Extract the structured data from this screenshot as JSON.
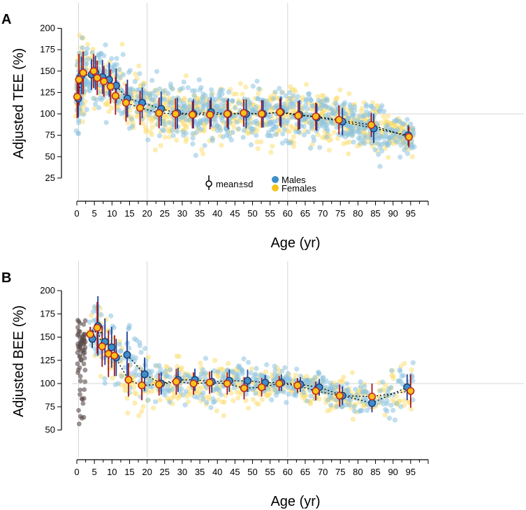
{
  "figure": {
    "colors": {
      "male_fill": "#3e8ec9",
      "male_edge": "#1f3e7a",
      "female_fill": "#f7c21a",
      "female_edge": "#c2241f",
      "male_bar": "#1f3e9a",
      "female_bar": "#a8141c",
      "male_scatter": "#8cc3e0",
      "female_scatter": "#fbdf73",
      "neonate_scatter": "#5a4a4a",
      "trend_line": "#000000"
    }
  },
  "chart_data": [
    {
      "panel": "A",
      "type": "scatter",
      "xlabel": "Age (yr)",
      "ylabel": "Adjusted TEE (%)",
      "xlim": [
        0,
        100
      ],
      "ylim": [
        25,
        200
      ],
      "xticks": [
        "0",
        "5",
        "10",
        "15",
        "20",
        "25",
        "30",
        "35",
        "40",
        "45",
        "50",
        "55",
        "60",
        "65",
        "70",
        "75",
        "80",
        "85",
        "90",
        "95"
      ],
      "yticks": [
        "25",
        "50",
        "75",
        "100",
        "125",
        "150",
        "175",
        "200"
      ],
      "vlines": [
        0.5,
        20,
        60
      ],
      "legend": {
        "title": "mean±sd",
        "entries": [
          "Males",
          "Females"
        ],
        "placement": "bottom-center"
      },
      "series": [
        {
          "name": "Males",
          "points": [
            {
              "x": 0.4,
              "mean": 118,
              "sd": 22
            },
            {
              "x": 1.3,
              "mean": 145,
              "sd": 22
            },
            {
              "x": 4.2,
              "mean": 146,
              "sd": 18
            },
            {
              "x": 5.3,
              "mean": 148,
              "sd": 20
            },
            {
              "x": 7.3,
              "mean": 143,
              "sd": 20
            },
            {
              "x": 9.2,
              "mean": 140,
              "sd": 20
            },
            {
              "x": 11.2,
              "mean": 133,
              "sd": 20
            },
            {
              "x": 14.4,
              "mean": 118,
              "sd": 22
            },
            {
              "x": 18.6,
              "mean": 113,
              "sd": 18
            },
            {
              "x": 24.0,
              "mean": 106,
              "sd": 20
            },
            {
              "x": 28.6,
              "mean": 101,
              "sd": 18
            },
            {
              "x": 33.2,
              "mean": 100,
              "sd": 17
            },
            {
              "x": 38.2,
              "mean": 102,
              "sd": 17
            },
            {
              "x": 43.1,
              "mean": 100,
              "sd": 18
            },
            {
              "x": 48.2,
              "mean": 100,
              "sd": 17
            },
            {
              "x": 53.0,
              "mean": 100,
              "sd": 16
            },
            {
              "x": 58.1,
              "mean": 102,
              "sd": 18
            },
            {
              "x": 63.4,
              "mean": 99,
              "sd": 17
            },
            {
              "x": 68.3,
              "mean": 96,
              "sd": 16
            },
            {
              "x": 75.6,
              "mean": 91,
              "sd": 16
            },
            {
              "x": 84.5,
              "mean": 83,
              "sd": 17
            },
            {
              "x": 94.3,
              "mean": 75,
              "sd": 12
            }
          ]
        },
        {
          "name": "Females",
          "points": [
            {
              "x": 0.1,
              "mean": 120,
              "sd": 25
            },
            {
              "x": 0.6,
              "mean": 140,
              "sd": 30
            },
            {
              "x": 1.8,
              "mean": 148,
              "sd": 25
            },
            {
              "x": 4.8,
              "mean": 150,
              "sd": 20
            },
            {
              "x": 5.8,
              "mean": 142,
              "sd": 20
            },
            {
              "x": 7.7,
              "mean": 138,
              "sd": 18
            },
            {
              "x": 9.6,
              "mean": 132,
              "sd": 20
            },
            {
              "x": 11.0,
              "mean": 121,
              "sd": 22
            },
            {
              "x": 14.0,
              "mean": 113,
              "sd": 22
            },
            {
              "x": 18.0,
              "mean": 107,
              "sd": 20
            },
            {
              "x": 23.4,
              "mean": 101,
              "sd": 18
            },
            {
              "x": 28.1,
              "mean": 100,
              "sd": 18
            },
            {
              "x": 32.9,
              "mean": 99,
              "sd": 16
            },
            {
              "x": 37.9,
              "mean": 99,
              "sd": 17
            },
            {
              "x": 42.8,
              "mean": 100,
              "sd": 16
            },
            {
              "x": 47.5,
              "mean": 101,
              "sd": 16
            },
            {
              "x": 52.6,
              "mean": 100,
              "sd": 16
            },
            {
              "x": 57.8,
              "mean": 102,
              "sd": 16
            },
            {
              "x": 63.0,
              "mean": 98,
              "sd": 17
            },
            {
              "x": 68.0,
              "mean": 97,
              "sd": 16
            },
            {
              "x": 74.6,
              "mean": 93,
              "sd": 17
            },
            {
              "x": 83.8,
              "mean": 87,
              "sd": 14
            },
            {
              "x": 94.5,
              "mean": 73,
              "sd": 12
            }
          ]
        }
      ]
    },
    {
      "panel": "B",
      "type": "scatter",
      "xlabel": "Age (yr)",
      "ylabel": "Adjusted BEE (%)",
      "xlim": [
        0,
        100
      ],
      "ylim": [
        40,
        200
      ],
      "xticks": [
        "0",
        "5",
        "10",
        "15",
        "20",
        "25",
        "30",
        "35",
        "40",
        "45",
        "50",
        "55",
        "60",
        "65",
        "70",
        "75",
        "80",
        "85",
        "90",
        "95"
      ],
      "yticks": [
        "50",
        "75",
        "100",
        "125",
        "150",
        "175",
        "200"
      ],
      "vlines": [
        0.5,
        20,
        60
      ],
      "hline": 100,
      "series": [
        {
          "name": "Males",
          "points": [
            {
              "x": 4.4,
              "mean": 148,
              "sd": 10
            },
            {
              "x": 6.0,
              "mean": 162,
              "sd": 32
            },
            {
              "x": 8.0,
              "mean": 145,
              "sd": 25
            },
            {
              "x": 9.9,
              "mean": 139,
              "sd": 22
            },
            {
              "x": 11.2,
              "mean": 128,
              "sd": 20
            },
            {
              "x": 14.3,
              "mean": 131,
              "sd": 25
            },
            {
              "x": 19.3,
              "mean": 110,
              "sd": 18
            },
            {
              "x": 24.0,
              "mean": 100,
              "sd": 12
            },
            {
              "x": 28.8,
              "mean": 104,
              "sd": 13
            },
            {
              "x": 33.6,
              "mean": 104,
              "sd": 12
            },
            {
              "x": 38.4,
              "mean": 102,
              "sd": 12
            },
            {
              "x": 43.4,
              "mean": 103,
              "sd": 12
            },
            {
              "x": 48.6,
              "mean": 103,
              "sd": 12
            },
            {
              "x": 53.6,
              "mean": 101,
              "sd": 8
            },
            {
              "x": 58.2,
              "mean": 101,
              "sd": 9
            },
            {
              "x": 63.6,
              "mean": 99,
              "sd": 8
            },
            {
              "x": 69.0,
              "mean": 96,
              "sd": 9
            },
            {
              "x": 75.6,
              "mean": 87,
              "sd": 10
            },
            {
              "x": 84.0,
              "mean": 79,
              "sd": 10
            },
            {
              "x": 94.0,
              "mean": 96,
              "sd": 14
            }
          ]
        },
        {
          "name": "Females",
          "points": [
            {
              "x": 3.8,
              "mean": 153,
              "sd": 8
            },
            {
              "x": 5.8,
              "mean": 160,
              "sd": 28
            },
            {
              "x": 7.2,
              "mean": 140,
              "sd": 22
            },
            {
              "x": 9.0,
              "mean": 132,
              "sd": 25
            },
            {
              "x": 10.7,
              "mean": 130,
              "sd": 22
            },
            {
              "x": 14.7,
              "mean": 104,
              "sd": 18
            },
            {
              "x": 18.5,
              "mean": 98,
              "sd": 16
            },
            {
              "x": 23.4,
              "mean": 99,
              "sd": 12
            },
            {
              "x": 28.3,
              "mean": 102,
              "sd": 14
            },
            {
              "x": 33.2,
              "mean": 100,
              "sd": 12
            },
            {
              "x": 37.8,
              "mean": 101,
              "sd": 12
            },
            {
              "x": 42.8,
              "mean": 100,
              "sd": 12
            },
            {
              "x": 47.6,
              "mean": 95,
              "sd": 12
            },
            {
              "x": 52.6,
              "mean": 96,
              "sd": 10
            },
            {
              "x": 57.6,
              "mean": 100,
              "sd": 8
            },
            {
              "x": 62.8,
              "mean": 98,
              "sd": 8
            },
            {
              "x": 68.0,
              "mean": 92,
              "sd": 10
            },
            {
              "x": 74.8,
              "mean": 87,
              "sd": 12
            },
            {
              "x": 84.0,
              "mean": 86,
              "sd": 14
            },
            {
              "x": 95.0,
              "mean": 92,
              "sd": 18
            }
          ]
        }
      ]
    }
  ]
}
